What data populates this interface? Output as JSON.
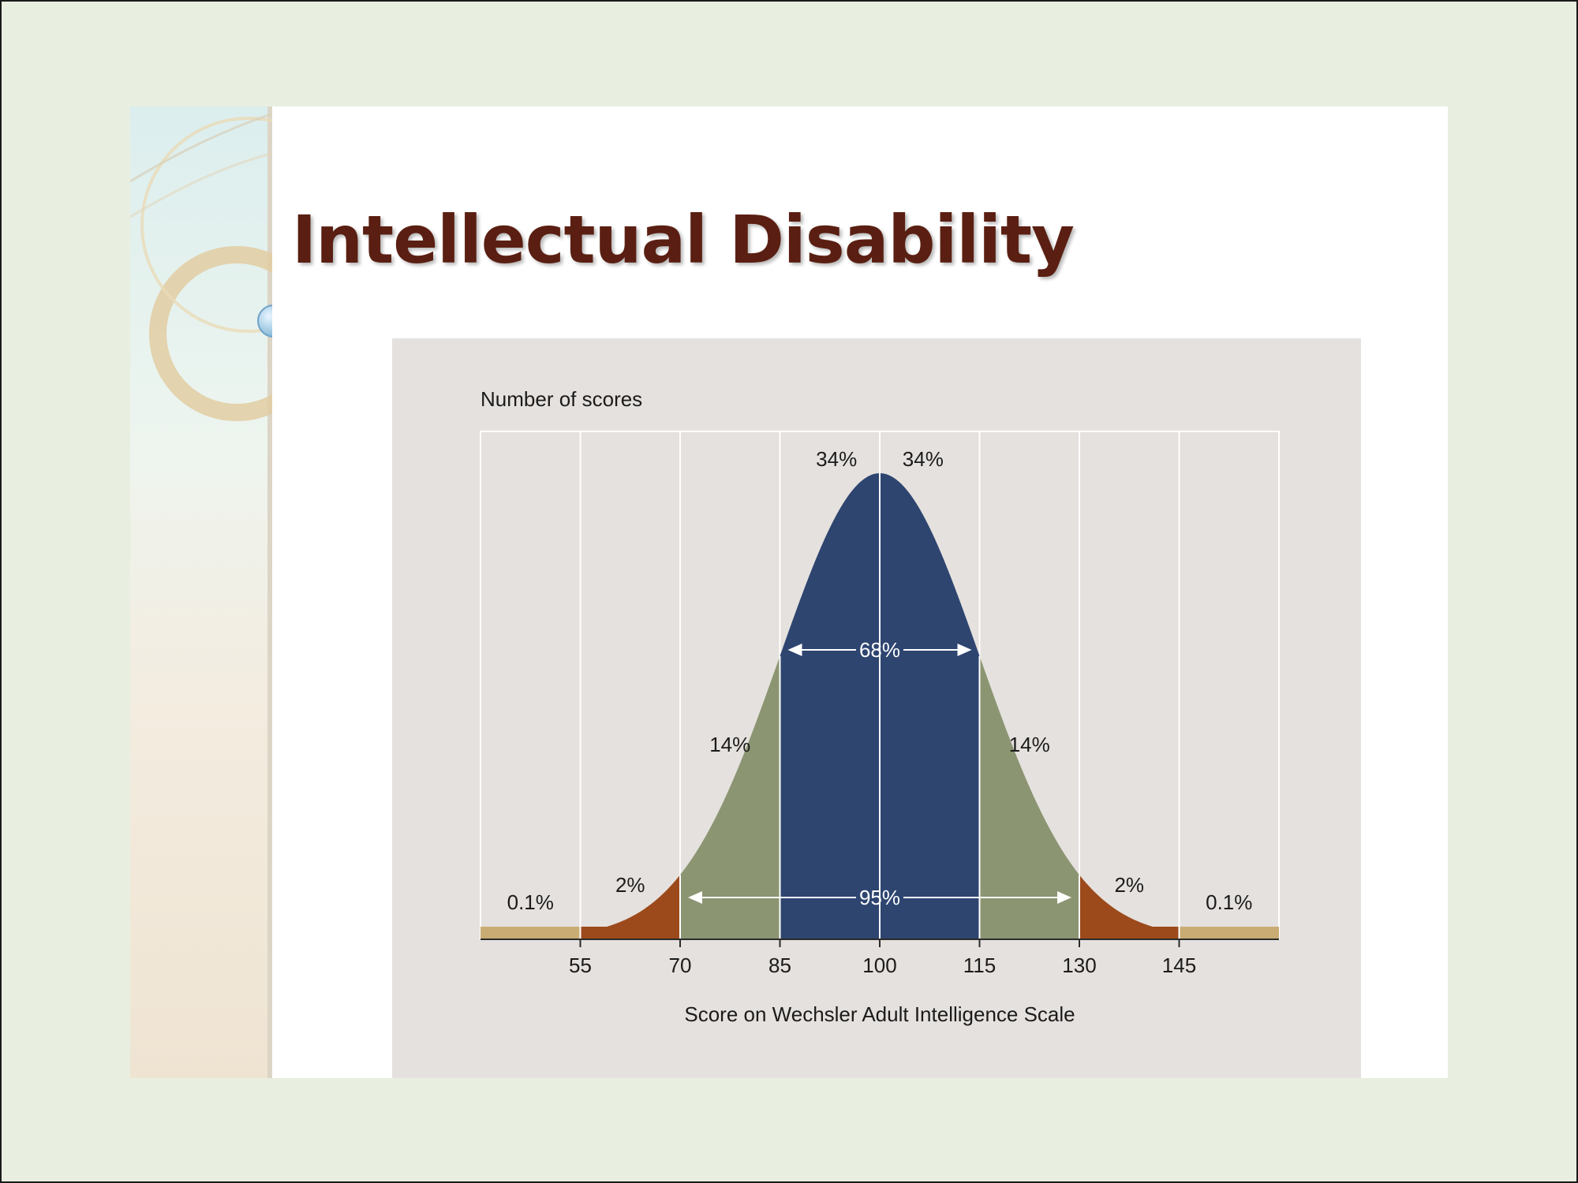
{
  "slide": {
    "title": "Intellectual Disability"
  },
  "colors": {
    "background": "#e8efe0",
    "title": "#5a1f12",
    "panel": "#e5e1de",
    "center_band": "#2e4570",
    "inner_tails": "#8b9572",
    "outer_tails": "#9c4a1c",
    "extreme_tails": "#c9ac73",
    "gridlines": "#ffffff"
  },
  "chart_data": {
    "type": "area",
    "title": "",
    "ylabel": "Number of scores",
    "xlabel": "Score on Wechsler Adult Intelligence Scale",
    "xlim": [
      40,
      160
    ],
    "mean": 100,
    "sd": 15,
    "ticks": [
      "55",
      "70",
      "85",
      "100",
      "115",
      "130",
      "145"
    ],
    "tick_values": [
      55,
      70,
      85,
      100,
      115,
      130,
      145
    ],
    "grid": true,
    "segments": [
      {
        "from": 40,
        "to": 55,
        "percent": "0.1%",
        "color": "#c9ac73"
      },
      {
        "from": 55,
        "to": 70,
        "percent": "2%",
        "color": "#9c4a1c"
      },
      {
        "from": 70,
        "to": 85,
        "percent": "14%",
        "color": "#8b9572"
      },
      {
        "from": 85,
        "to": 100,
        "percent": "34%",
        "color": "#2e4570"
      },
      {
        "from": 100,
        "to": 115,
        "percent": "34%",
        "color": "#2e4570"
      },
      {
        "from": 115,
        "to": 130,
        "percent": "14%",
        "color": "#8b9572"
      },
      {
        "from": 130,
        "to": 145,
        "percent": "2%",
        "color": "#9c4a1c"
      },
      {
        "from": 145,
        "to": 160,
        "percent": "0.1%",
        "color": "#c9ac73"
      }
    ],
    "annotations": [
      {
        "text": "68%",
        "from": 85,
        "to": 115
      },
      {
        "text": "95%",
        "from": 70,
        "to": 130
      }
    ]
  }
}
